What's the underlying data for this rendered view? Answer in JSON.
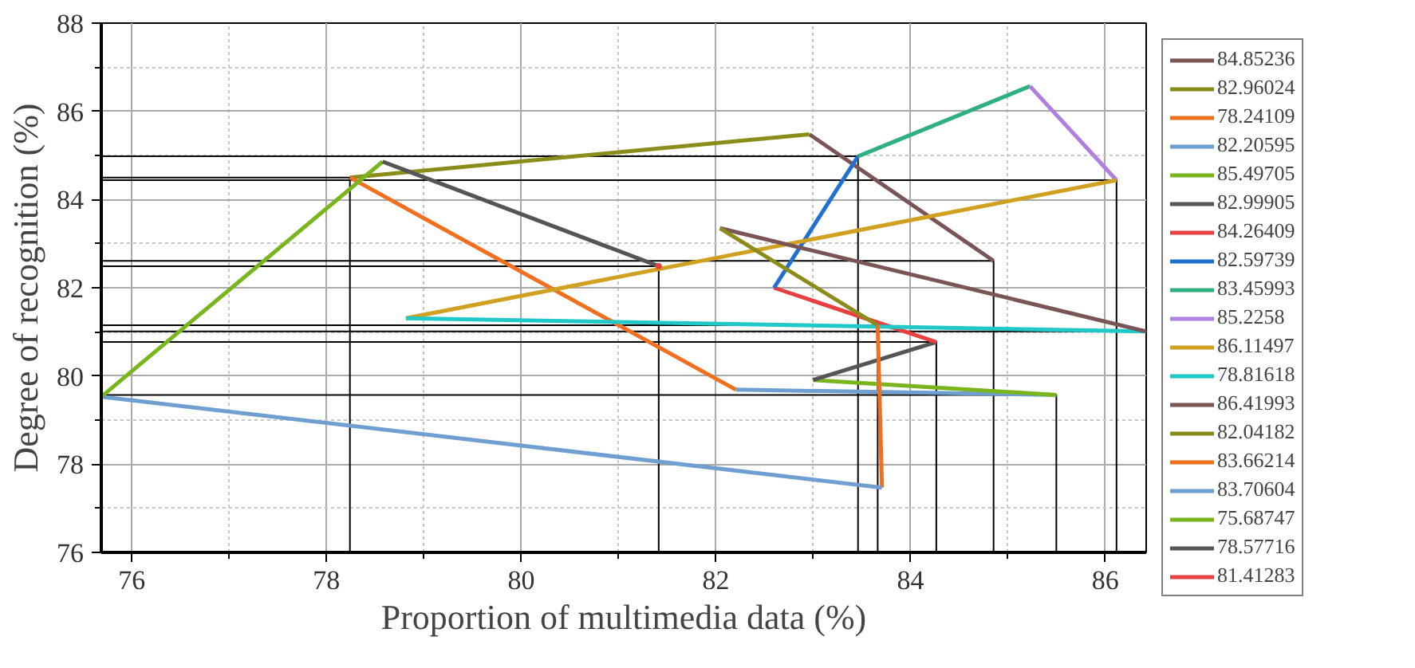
{
  "chart_data": {
    "type": "line",
    "xlabel": "Proportion of multimedia data (%)",
    "ylabel": "Degree of recognition (%)",
    "xlim": [
      75.68747,
      86.41993
    ],
    "ylim": [
      76,
      88
    ],
    "xticks": [
      76,
      {
        "value": 77,
        "label": null
      },
      78,
      {
        "value": 79,
        "label": null
      },
      80,
      {
        "value": 81,
        "label": null
      },
      82,
      {
        "value": 83,
        "label": null
      },
      84,
      {
        "value": 85,
        "label": null
      },
      86
    ],
    "yticks": [
      76,
      {
        "value": 77,
        "label": null
      },
      78,
      {
        "value": 79,
        "label": null
      },
      80,
      {
        "value": 81,
        "label": null
      },
      82,
      {
        "value": 83,
        "label": null
      },
      84,
      {
        "value": 85,
        "label": null
      },
      86,
      {
        "value": 87,
        "label": null
      },
      88
    ],
    "grid": true,
    "legend": "right",
    "marker": "none",
    "line_style": "solid",
    "series": [
      {
        "color": "#000000",
        "x": [
          75.68747,
          78.24109,
          78.24109
        ],
        "values": [
          84.5,
          84.5,
          76
        ]
      },
      {
        "color": "#000000",
        "x": [
          75.68747,
          81.41283,
          81.41283
        ],
        "values": [
          82.49,
          82.49,
          76
        ]
      },
      {
        "color": "#000000",
        "x": [
          75.68747,
          83.45993,
          83.45993
        ],
        "values": [
          84.98,
          84.98,
          76
        ]
      },
      {
        "color": "#000000",
        "x": [
          75.68747,
          83.66214,
          83.66214
        ],
        "values": [
          81.15,
          81.15,
          76
        ]
      },
      {
        "color": "#000000",
        "x": [
          75.68747,
          84.26409,
          84.26409
        ],
        "values": [
          80.77,
          80.77,
          76
        ]
      },
      {
        "color": "#000000",
        "x": [
          75.68747,
          84.85236,
          84.85236
        ],
        "values": [
          82.61,
          82.61,
          76
        ]
      },
      {
        "color": "#000000",
        "x": [
          75.68747,
          85.49705,
          85.49705
        ],
        "values": [
          79.57,
          79.57,
          76
        ]
      },
      {
        "color": "#000000",
        "x": [
          75.68747,
          86.11497,
          86.11497
        ],
        "values": [
          84.44,
          84.44,
          76
        ]
      },
      {
        "color": "#000000",
        "x": [
          75.68747,
          86.41993
        ],
        "values": [
          81.01,
          81.01
        ]
      },
      {
        "name": "84.85236",
        "color": "#7a5555",
        "x": [
          84.85236,
          82.96024
        ],
        "values": [
          82.61,
          85.48
        ]
      },
      {
        "name": "82.96024",
        "color": "#8c8c1a",
        "x": [
          82.96024,
          78.24109
        ],
        "values": [
          85.48,
          84.5
        ]
      },
      {
        "name": "78.24109",
        "color": "#f07020",
        "x": [
          78.24109,
          82.20595
        ],
        "values": [
          84.5,
          79.69
        ]
      },
      {
        "name": "82.20595",
        "color": "#6f9fd0",
        "x": [
          82.20595,
          85.49705
        ],
        "values": [
          79.69,
          79.57
        ]
      },
      {
        "name": "85.49705",
        "color": "#7ab51d",
        "x": [
          85.49705,
          82.99905
        ],
        "values": [
          79.57,
          79.91
        ]
      },
      {
        "name": "82.99905",
        "color": "#555555",
        "x": [
          82.99905,
          84.26409
        ],
        "values": [
          79.91,
          80.77
        ]
      },
      {
        "name": "84.26409",
        "color": "#e84040",
        "x": [
          84.26409,
          82.59739
        ],
        "values": [
          80.77,
          82.0
        ]
      },
      {
        "name": "82.59739",
        "color": "#2070d0",
        "x": [
          82.59739,
          83.45993
        ],
        "values": [
          82.0,
          84.98
        ]
      },
      {
        "name": "83.45993",
        "color": "#30b080",
        "x": [
          83.45993,
          85.2258
        ],
        "values": [
          84.98,
          86.57
        ]
      },
      {
        "name": "85.2258",
        "color": "#b080e0",
        "x": [
          85.2258,
          86.11497
        ],
        "values": [
          86.57,
          84.44
        ]
      },
      {
        "name": "86.11497",
        "color": "#d0a020",
        "x": [
          86.11497,
          78.81618
        ],
        "values": [
          84.44,
          81.31
        ]
      },
      {
        "name": "78.81618",
        "color": "#20c8c8",
        "x": [
          78.81618,
          86.41993
        ],
        "values": [
          81.31,
          81.01
        ]
      },
      {
        "name": "86.41993",
        "color": "#7a5555",
        "x": [
          86.41993,
          82.04182
        ],
        "values": [
          81.01,
          83.35
        ]
      },
      {
        "name": "82.04182",
        "color": "#8c8c1a",
        "x": [
          82.04182,
          83.66214
        ],
        "values": [
          83.35,
          81.15
        ]
      },
      {
        "name": "83.66214",
        "color": "#f07020",
        "x": [
          83.66214,
          83.70604
        ],
        "values": [
          81.15,
          77.47
        ]
      },
      {
        "name": "83.70604",
        "color": "#6f9fd0",
        "x": [
          83.70604,
          75.68747
        ],
        "values": [
          77.47,
          79.53
        ]
      },
      {
        "name": "75.68747",
        "color": "#7ab51d",
        "x": [
          75.68747,
          78.57716
        ],
        "values": [
          79.53,
          84.86
        ]
      },
      {
        "name": "78.57716",
        "color": "#555555",
        "x": [
          78.57716,
          81.41283
        ],
        "values": [
          84.86,
          82.49
        ]
      },
      {
        "name": "81.41283",
        "color": "#e84040",
        "x": [
          81.41283
        ],
        "values": [
          82.49
        ]
      }
    ]
  }
}
